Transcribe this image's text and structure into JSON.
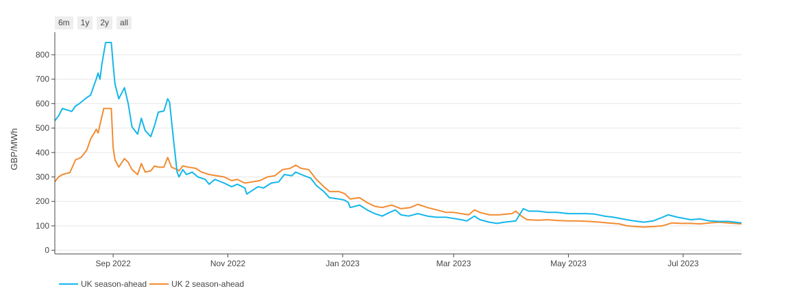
{
  "range_selector": {
    "buttons": [
      "6m",
      "1y",
      "2y",
      "all"
    ]
  },
  "colors": {
    "series1": "#12b6ea",
    "series2": "#f28b30",
    "axis": "#444444",
    "grid": "#e6e6e6"
  },
  "chart_data": {
    "type": "line",
    "ylabel": "GBP/MWh",
    "xlabel": "",
    "title": "",
    "ylim": [
      -15,
      870
    ],
    "xlim": [
      "2022-08-01",
      "2023-08-01"
    ],
    "yticks": [
      0,
      100,
      200,
      300,
      400,
      500,
      600,
      700,
      800
    ],
    "xticks": [
      {
        "date": "2022-09-01",
        "label": "Sep 2022"
      },
      {
        "date": "2022-11-01",
        "label": "Nov 2022"
      },
      {
        "date": "2023-01-01",
        "label": "Jan 2023"
      },
      {
        "date": "2023-03-01",
        "label": "Mar 2023"
      },
      {
        "date": "2023-05-01",
        "label": "May 2023"
      },
      {
        "date": "2023-07-01",
        "label": "Jul 2023"
      }
    ],
    "legend_position": "bottom-left",
    "series": [
      {
        "name": "UK season-ahead",
        "points": [
          [
            "2022-08-01",
            530
          ],
          [
            "2022-08-03",
            550
          ],
          [
            "2022-08-05",
            580
          ],
          [
            "2022-08-10",
            568
          ],
          [
            "2022-08-12",
            590
          ],
          [
            "2022-08-14",
            600
          ],
          [
            "2022-08-18",
            625
          ],
          [
            "2022-08-20",
            635
          ],
          [
            "2022-08-23",
            700
          ],
          [
            "2022-08-24",
            725
          ],
          [
            "2022-08-25",
            700
          ],
          [
            "2022-08-26",
            760
          ],
          [
            "2022-08-28",
            850
          ],
          [
            "2022-08-31",
            850
          ],
          [
            "2022-09-01",
            760
          ],
          [
            "2022-09-02",
            680
          ],
          [
            "2022-09-04",
            620
          ],
          [
            "2022-09-07",
            665
          ],
          [
            "2022-09-09",
            600
          ],
          [
            "2022-09-11",
            505
          ],
          [
            "2022-09-14",
            475
          ],
          [
            "2022-09-16",
            540
          ],
          [
            "2022-09-18",
            490
          ],
          [
            "2022-09-21",
            465
          ],
          [
            "2022-09-23",
            510
          ],
          [
            "2022-09-25",
            565
          ],
          [
            "2022-09-28",
            570
          ],
          [
            "2022-09-30",
            620
          ],
          [
            "2022-10-01",
            605
          ],
          [
            "2022-10-03",
            460
          ],
          [
            "2022-10-05",
            320
          ],
          [
            "2022-10-06",
            300
          ],
          [
            "2022-10-08",
            330
          ],
          [
            "2022-10-10",
            310
          ],
          [
            "2022-10-13",
            320
          ],
          [
            "2022-10-16",
            300
          ],
          [
            "2022-10-20",
            290
          ],
          [
            "2022-10-22",
            270
          ],
          [
            "2022-10-25",
            290
          ],
          [
            "2022-10-30",
            275
          ],
          [
            "2022-11-03",
            260
          ],
          [
            "2022-11-06",
            270
          ],
          [
            "2022-11-10",
            255
          ],
          [
            "2022-11-11",
            230
          ],
          [
            "2022-11-14",
            245
          ],
          [
            "2022-11-17",
            260
          ],
          [
            "2022-11-20",
            255
          ],
          [
            "2022-11-24",
            275
          ],
          [
            "2022-11-28",
            280
          ],
          [
            "2022-12-01",
            310
          ],
          [
            "2022-12-05",
            305
          ],
          [
            "2022-12-07",
            320
          ],
          [
            "2022-12-10",
            310
          ],
          [
            "2022-12-15",
            295
          ],
          [
            "2022-12-18",
            265
          ],
          [
            "2022-12-22",
            240
          ],
          [
            "2022-12-25",
            215
          ],
          [
            "2022-12-30",
            210
          ],
          [
            "2023-01-02",
            205
          ],
          [
            "2023-01-04",
            195
          ],
          [
            "2023-01-05",
            175
          ],
          [
            "2023-01-10",
            185
          ],
          [
            "2023-01-14",
            165
          ],
          [
            "2023-01-18",
            150
          ],
          [
            "2023-01-22",
            140
          ],
          [
            "2023-01-26",
            155
          ],
          [
            "2023-01-29",
            165
          ],
          [
            "2023-02-01",
            145
          ],
          [
            "2023-02-05",
            140
          ],
          [
            "2023-02-10",
            150
          ],
          [
            "2023-02-15",
            140
          ],
          [
            "2023-02-20",
            135
          ],
          [
            "2023-02-25",
            135
          ],
          [
            "2023-03-01",
            130
          ],
          [
            "2023-03-05",
            125
          ],
          [
            "2023-03-08",
            120
          ],
          [
            "2023-03-12",
            140
          ],
          [
            "2023-03-15",
            125
          ],
          [
            "2023-03-20",
            115
          ],
          [
            "2023-03-24",
            110
          ],
          [
            "2023-03-28",
            115
          ],
          [
            "2023-04-03",
            120
          ],
          [
            "2023-04-05",
            145
          ],
          [
            "2023-04-07",
            170
          ],
          [
            "2023-04-10",
            160
          ],
          [
            "2023-04-15",
            160
          ],
          [
            "2023-04-20",
            155
          ],
          [
            "2023-04-25",
            155
          ],
          [
            "2023-05-01",
            150
          ],
          [
            "2023-05-10",
            150
          ],
          [
            "2023-05-15",
            148
          ],
          [
            "2023-05-20",
            140
          ],
          [
            "2023-05-25",
            135
          ],
          [
            "2023-06-01",
            125
          ],
          [
            "2023-06-05",
            120
          ],
          [
            "2023-06-10",
            115
          ],
          [
            "2023-06-15",
            120
          ],
          [
            "2023-06-20",
            135
          ],
          [
            "2023-06-23",
            145
          ],
          [
            "2023-06-28",
            135
          ],
          [
            "2023-07-05",
            125
          ],
          [
            "2023-07-10",
            128
          ],
          [
            "2023-07-15",
            120
          ],
          [
            "2023-07-20",
            118
          ],
          [
            "2023-07-25",
            118
          ],
          [
            "2023-08-01",
            112
          ]
        ]
      },
      {
        "name": "UK 2 season-ahead",
        "points": [
          [
            "2022-08-01",
            280
          ],
          [
            "2022-08-03",
            300
          ],
          [
            "2022-08-05",
            310
          ],
          [
            "2022-08-09",
            318
          ],
          [
            "2022-08-12",
            370
          ],
          [
            "2022-08-15",
            380
          ],
          [
            "2022-08-18",
            410
          ],
          [
            "2022-08-20",
            455
          ],
          [
            "2022-08-22",
            480
          ],
          [
            "2022-08-23",
            495
          ],
          [
            "2022-08-24",
            480
          ],
          [
            "2022-08-27",
            580
          ],
          [
            "2022-08-31",
            580
          ],
          [
            "2022-09-01",
            420
          ],
          [
            "2022-09-02",
            370
          ],
          [
            "2022-09-04",
            340
          ],
          [
            "2022-09-07",
            375
          ],
          [
            "2022-09-09",
            360
          ],
          [
            "2022-09-11",
            330
          ],
          [
            "2022-09-14",
            310
          ],
          [
            "2022-09-16",
            355
          ],
          [
            "2022-09-18",
            320
          ],
          [
            "2022-09-21",
            325
          ],
          [
            "2022-09-23",
            345
          ],
          [
            "2022-09-25",
            340
          ],
          [
            "2022-09-28",
            340
          ],
          [
            "2022-09-30",
            380
          ],
          [
            "2022-10-02",
            340
          ],
          [
            "2022-10-05",
            330
          ],
          [
            "2022-10-06",
            325
          ],
          [
            "2022-10-08",
            345
          ],
          [
            "2022-10-11",
            340
          ],
          [
            "2022-10-15",
            335
          ],
          [
            "2022-10-18",
            320
          ],
          [
            "2022-10-22",
            310
          ],
          [
            "2022-10-26",
            305
          ],
          [
            "2022-10-30",
            300
          ],
          [
            "2022-11-03",
            285
          ],
          [
            "2022-11-06",
            290
          ],
          [
            "2022-11-10",
            275
          ],
          [
            "2022-11-14",
            280
          ],
          [
            "2022-11-18",
            285
          ],
          [
            "2022-11-22",
            300
          ],
          [
            "2022-11-26",
            305
          ],
          [
            "2022-11-30",
            330
          ],
          [
            "2022-12-04",
            335
          ],
          [
            "2022-12-07",
            348
          ],
          [
            "2022-12-10",
            335
          ],
          [
            "2022-12-14",
            330
          ],
          [
            "2022-12-18",
            290
          ],
          [
            "2022-12-22",
            260
          ],
          [
            "2022-12-25",
            240
          ],
          [
            "2022-12-30",
            240
          ],
          [
            "2023-01-02",
            232
          ],
          [
            "2023-01-05",
            210
          ],
          [
            "2023-01-10",
            215
          ],
          [
            "2023-01-14",
            195
          ],
          [
            "2023-01-18",
            180
          ],
          [
            "2023-01-22",
            175
          ],
          [
            "2023-01-27",
            185
          ],
          [
            "2023-02-01",
            170
          ],
          [
            "2023-02-06",
            175
          ],
          [
            "2023-02-10",
            188
          ],
          [
            "2023-02-15",
            175
          ],
          [
            "2023-02-20",
            165
          ],
          [
            "2023-02-25",
            155
          ],
          [
            "2023-03-01",
            155
          ],
          [
            "2023-03-05",
            150
          ],
          [
            "2023-03-09",
            145
          ],
          [
            "2023-03-12",
            165
          ],
          [
            "2023-03-15",
            155
          ],
          [
            "2023-03-20",
            145
          ],
          [
            "2023-03-25",
            145
          ],
          [
            "2023-03-29",
            148
          ],
          [
            "2023-04-01",
            150
          ],
          [
            "2023-04-03",
            160
          ],
          [
            "2023-04-06",
            140
          ],
          [
            "2023-04-09",
            125
          ],
          [
            "2023-04-15",
            123
          ],
          [
            "2023-04-20",
            125
          ],
          [
            "2023-04-25",
            122
          ],
          [
            "2023-05-01",
            120
          ],
          [
            "2023-05-06",
            120
          ],
          [
            "2023-05-12",
            118
          ],
          [
            "2023-05-18",
            115
          ],
          [
            "2023-05-22",
            112
          ],
          [
            "2023-05-28",
            108
          ],
          [
            "2023-06-01",
            100
          ],
          [
            "2023-06-05",
            98
          ],
          [
            "2023-06-10",
            95
          ],
          [
            "2023-06-15",
            97
          ],
          [
            "2023-06-20",
            100
          ],
          [
            "2023-06-25",
            112
          ],
          [
            "2023-06-30",
            110
          ],
          [
            "2023-07-05",
            110
          ],
          [
            "2023-07-10",
            108
          ],
          [
            "2023-07-15",
            112
          ],
          [
            "2023-07-20",
            115
          ],
          [
            "2023-07-25",
            112
          ],
          [
            "2023-08-01",
            108
          ]
        ]
      }
    ]
  }
}
